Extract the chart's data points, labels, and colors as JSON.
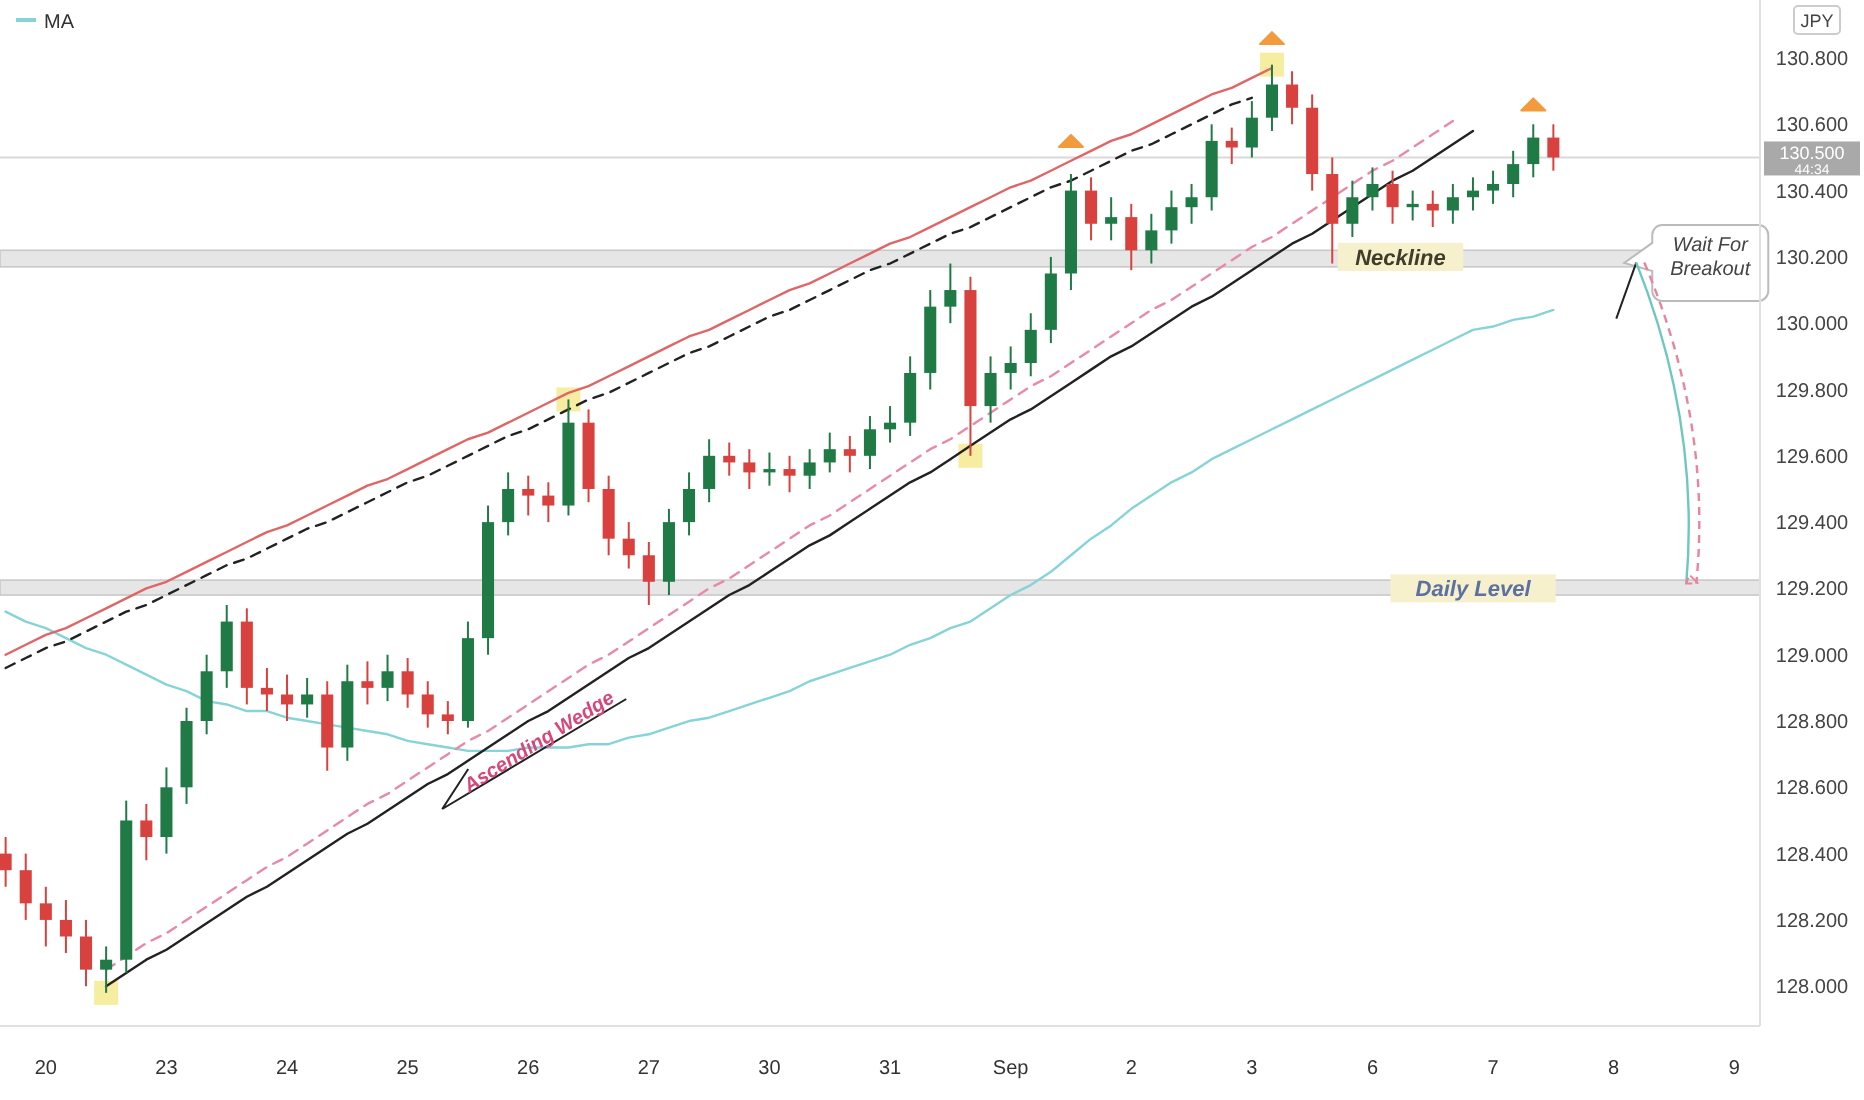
{
  "chart_data": {
    "type": "candlestick",
    "ylabel": "JPY",
    "legend": "top left",
    "ylim": [
      127.88,
      130.975
    ],
    "yticks": [
      {
        "value": 128,
        "label": "128.000"
      },
      {
        "value": 128.2,
        "label": "128.200"
      },
      {
        "value": 128.4,
        "label": "128.400"
      },
      {
        "value": 128.6,
        "label": "128.600"
      },
      {
        "value": 128.8,
        "label": "128.800"
      },
      {
        "value": 129,
        "label": "129.000"
      },
      {
        "value": 129.2,
        "label": "129.200"
      },
      {
        "value": 129.4,
        "label": "129.400"
      },
      {
        "value": 129.6,
        "label": "129.600"
      },
      {
        "value": 129.8,
        "label": "129.800"
      },
      {
        "value": 130,
        "label": "130.000"
      },
      {
        "value": 130.2,
        "label": "130.200"
      },
      {
        "value": 130.4,
        "label": "130.400"
      },
      {
        "value": 130.6,
        "label": "130.600"
      },
      {
        "value": 130.8,
        "label": "130.800"
      }
    ],
    "categories": [
      null,
      null,
      "20",
      null,
      null,
      null,
      null,
      null,
      "23",
      null,
      null,
      null,
      null,
      null,
      "24",
      null,
      null,
      null,
      null,
      null,
      "25",
      null,
      null,
      null,
      null,
      null,
      "26",
      null,
      null,
      null,
      null,
      null,
      "27",
      null,
      null,
      null,
      null,
      null,
      "30",
      null,
      null,
      null,
      null,
      null,
      "31",
      null,
      null,
      null,
      null,
      null,
      "Sep",
      null,
      null,
      null,
      null,
      null,
      "2",
      null,
      null,
      null,
      null,
      null,
      "3",
      null,
      null,
      null,
      null,
      null,
      "6",
      null,
      null,
      null,
      null,
      null,
      "7",
      null,
      null,
      null,
      null,
      null,
      "8",
      null,
      null,
      null,
      null,
      null,
      "9",
      null
    ],
    "ohlc": [
      [
        128.4,
        128.45,
        128.3,
        128.35
      ],
      [
        128.35,
        128.4,
        128.2,
        128.25
      ],
      [
        128.25,
        128.3,
        128.12,
        128.2
      ],
      [
        128.2,
        128.26,
        128.1,
        128.15
      ],
      [
        128.15,
        128.2,
        128.0,
        128.05
      ],
      [
        128.05,
        128.12,
        127.98,
        128.08
      ],
      [
        128.08,
        128.56,
        128.04,
        128.5
      ],
      [
        128.5,
        128.55,
        128.38,
        128.45
      ],
      [
        128.45,
        128.66,
        128.4,
        128.6
      ],
      [
        128.6,
        128.84,
        128.55,
        128.8
      ],
      [
        128.8,
        129.0,
        128.76,
        128.95
      ],
      [
        128.95,
        129.15,
        128.9,
        129.1
      ],
      [
        129.1,
        129.14,
        128.85,
        128.9
      ],
      [
        128.9,
        128.96,
        128.83,
        128.88
      ],
      [
        128.88,
        128.94,
        128.8,
        128.85
      ],
      [
        128.85,
        128.93,
        128.81,
        128.88
      ],
      [
        128.88,
        128.92,
        128.65,
        128.72
      ],
      [
        128.72,
        128.97,
        128.68,
        128.92
      ],
      [
        128.92,
        128.98,
        128.85,
        128.9
      ],
      [
        128.9,
        129.0,
        128.86,
        128.95
      ],
      [
        128.95,
        128.99,
        128.84,
        128.88
      ],
      [
        128.88,
        128.92,
        128.78,
        128.82
      ],
      [
        128.82,
        128.86,
        128.76,
        128.8
      ],
      [
        128.8,
        129.1,
        128.78,
        129.05
      ],
      [
        129.05,
        129.45,
        129.0,
        129.4
      ],
      [
        129.4,
        129.55,
        129.36,
        129.5
      ],
      [
        129.5,
        129.54,
        129.42,
        129.48
      ],
      [
        129.48,
        129.52,
        129.4,
        129.45
      ],
      [
        129.45,
        129.77,
        129.42,
        129.7
      ],
      [
        129.7,
        129.74,
        129.46,
        129.5
      ],
      [
        129.5,
        129.54,
        129.3,
        129.35
      ],
      [
        129.35,
        129.4,
        129.26,
        129.3
      ],
      [
        129.3,
        129.34,
        129.15,
        129.22
      ],
      [
        129.22,
        129.44,
        129.18,
        129.4
      ],
      [
        129.4,
        129.55,
        129.36,
        129.5
      ],
      [
        129.5,
        129.65,
        129.46,
        129.6
      ],
      [
        129.6,
        129.64,
        129.54,
        129.58
      ],
      [
        129.58,
        129.62,
        129.5,
        129.55
      ],
      [
        129.55,
        129.61,
        129.51,
        129.56
      ],
      [
        129.56,
        129.6,
        129.49,
        129.54
      ],
      [
        129.54,
        129.62,
        129.5,
        129.58
      ],
      [
        129.58,
        129.67,
        129.55,
        129.62
      ],
      [
        129.62,
        129.66,
        129.55,
        129.6
      ],
      [
        129.6,
        129.72,
        129.56,
        129.68
      ],
      [
        129.68,
        129.75,
        129.64,
        129.7
      ],
      [
        129.7,
        129.9,
        129.66,
        129.85
      ],
      [
        129.85,
        130.1,
        129.8,
        130.05
      ],
      [
        130.05,
        130.18,
        130.0,
        130.1
      ],
      [
        130.1,
        130.14,
        129.6,
        129.75
      ],
      [
        129.75,
        129.9,
        129.7,
        129.85
      ],
      [
        129.85,
        129.93,
        129.8,
        129.88
      ],
      [
        129.88,
        130.03,
        129.84,
        129.98
      ],
      [
        129.98,
        130.2,
        129.94,
        130.15
      ],
      [
        130.15,
        130.45,
        130.1,
        130.4
      ],
      [
        130.4,
        130.44,
        130.25,
        130.3
      ],
      [
        130.3,
        130.38,
        130.25,
        130.32
      ],
      [
        130.32,
        130.36,
        130.16,
        130.22
      ],
      [
        130.22,
        130.33,
        130.18,
        130.28
      ],
      [
        130.28,
        130.4,
        130.24,
        130.35
      ],
      [
        130.35,
        130.42,
        130.3,
        130.38
      ],
      [
        130.38,
        130.6,
        130.34,
        130.55
      ],
      [
        130.55,
        130.59,
        130.48,
        130.53
      ],
      [
        130.53,
        130.67,
        130.5,
        130.62
      ],
      [
        130.62,
        130.78,
        130.58,
        130.72
      ],
      [
        130.72,
        130.76,
        130.6,
        130.65
      ],
      [
        130.65,
        130.69,
        130.4,
        130.45
      ],
      [
        130.45,
        130.5,
        130.18,
        130.3
      ],
      [
        130.3,
        130.43,
        130.26,
        130.38
      ],
      [
        130.38,
        130.47,
        130.34,
        130.42
      ],
      [
        130.42,
        130.46,
        130.3,
        130.35
      ],
      [
        130.35,
        130.4,
        130.31,
        130.36
      ],
      [
        130.36,
        130.4,
        130.29,
        130.34
      ],
      [
        130.34,
        130.42,
        130.3,
        130.38
      ],
      [
        130.38,
        130.44,
        130.34,
        130.4
      ],
      [
        130.4,
        130.46,
        130.36,
        130.42
      ],
      [
        130.42,
        130.52,
        130.38,
        130.48
      ],
      [
        130.48,
        130.6,
        130.44,
        130.56
      ],
      [
        130.56,
        130.6,
        130.46,
        130.5
      ],
      null,
      null,
      null,
      null,
      null,
      null,
      null,
      null,
      null,
      null
    ],
    "colors": [
      "#d8413e",
      "#d8413e",
      "#d8413e",
      "#d8413e",
      "#d8413e",
      "#1f7a46",
      "#1f7a46",
      "#d8413e",
      "#1f7a46",
      "#1f7a46",
      "#1f7a46",
      "#1f7a46",
      "#d8413e",
      "#d8413e",
      "#d8413e",
      "#1f7a46",
      "#d8413e",
      "#1f7a46",
      "#d8413e",
      "#1f7a46",
      "#d8413e",
      "#d8413e",
      "#d8413e",
      "#1f7a46",
      "#1f7a46",
      "#1f7a46",
      "#d8413e",
      "#d8413e",
      "#1f7a46",
      "#d8413e",
      "#d8413e",
      "#d8413e",
      "#d8413e",
      "#1f7a46",
      "#1f7a46",
      "#1f7a46",
      "#d8413e",
      "#d8413e",
      "#1f7a46",
      "#d8413e",
      "#1f7a46",
      "#1f7a46",
      "#d8413e",
      "#1f7a46",
      "#1f7a46",
      "#1f7a46",
      "#1f7a46",
      "#1f7a46",
      "#d8413e",
      "#1f7a46",
      "#1f7a46",
      "#1f7a46",
      "#1f7a46",
      "#1f7a46",
      "#d8413e",
      "#1f7a46",
      "#d8413e",
      "#1f7a46",
      "#1f7a46",
      "#1f7a46",
      "#1f7a46",
      "#d8413e",
      "#1f7a46",
      "#1f7a46",
      "#d8413e",
      "#d8413e",
      "#d8413e",
      "#1f7a46",
      "#1f7a46",
      "#d8413e",
      "#1f7a46",
      "#d8413e",
      "#1f7a46",
      "#1f7a46",
      "#1f7a46",
      "#1f7a46",
      "#1f7a46",
      "#d8413e",
      null,
      null,
      null,
      null,
      null,
      null,
      null,
      null,
      null,
      null
    ],
    "series": [
      {
        "name": "MA",
        "type": "line",
        "color": "#86d4d8",
        "values": [
          129.13,
          129.1,
          129.08,
          129.05,
          129.02,
          129.0,
          128.97,
          128.94,
          128.91,
          128.89,
          128.86,
          128.85,
          128.83,
          128.83,
          128.81,
          128.8,
          128.79,
          128.78,
          128.77,
          128.76,
          128.74,
          128.73,
          128.72,
          128.71,
          128.71,
          128.71,
          128.72,
          128.72,
          128.72,
          128.73,
          128.73,
          128.75,
          128.76,
          128.78,
          128.8,
          128.81,
          128.83,
          128.85,
          128.87,
          128.89,
          128.92,
          128.94,
          128.96,
          128.98,
          129.0,
          129.03,
          129.05,
          129.08,
          129.1,
          129.14,
          129.18,
          129.21,
          129.25,
          129.3,
          129.35,
          129.39,
          129.44,
          129.48,
          129.52,
          129.55,
          129.59,
          129.62,
          129.65,
          129.68,
          129.71,
          129.74,
          129.77,
          129.8,
          129.83,
          129.86,
          129.89,
          129.92,
          129.95,
          129.98,
          129.99,
          130.01,
          130.02,
          130.04,
          null,
          null,
          null,
          null,
          null,
          null,
          null,
          null,
          null,
          null
        ]
      },
      {
        "type": "line",
        "color": "#e06666",
        "values": [
          129.0,
          129.03,
          129.06,
          129.08,
          129.11,
          129.14,
          129.17,
          129.2,
          129.22,
          129.25,
          129.28,
          129.31,
          129.34,
          129.37,
          129.39,
          129.42,
          129.45,
          129.48,
          129.51,
          129.53,
          129.56,
          129.59,
          129.62,
          129.65,
          129.67,
          129.7,
          129.73,
          129.76,
          129.79,
          129.81,
          129.84,
          129.87,
          129.9,
          129.93,
          129.96,
          129.98,
          130.01,
          130.04,
          130.07,
          130.1,
          130.12,
          130.15,
          130.18,
          130.21,
          130.24,
          130.26,
          130.29,
          130.32,
          130.35,
          130.38,
          130.41,
          130.43,
          130.46,
          130.49,
          130.52,
          130.55,
          130.57,
          130.6,
          130.63,
          130.66,
          130.69,
          130.71,
          130.74,
          130.77,
          null,
          null,
          null,
          null,
          null,
          null,
          null,
          null,
          null,
          null,
          null,
          null,
          null,
          null,
          null,
          null,
          null,
          null,
          null,
          null,
          null,
          null,
          null,
          null
        ]
      },
      {
        "type": "line",
        "color": "#222222",
        "line_style": "dashed",
        "values": [
          128.96,
          128.99,
          129.02,
          129.04,
          129.07,
          129.1,
          129.13,
          129.15,
          129.18,
          129.21,
          129.24,
          129.27,
          129.29,
          129.32,
          129.35,
          129.38,
          129.4,
          129.43,
          129.46,
          129.49,
          129.52,
          129.54,
          129.57,
          129.6,
          129.63,
          129.66,
          129.68,
          129.71,
          129.74,
          129.77,
          129.79,
          129.82,
          129.85,
          129.88,
          129.91,
          129.93,
          129.96,
          129.99,
          130.02,
          130.04,
          130.07,
          130.1,
          130.13,
          130.16,
          130.18,
          130.21,
          130.24,
          130.27,
          130.29,
          130.32,
          130.35,
          130.38,
          130.41,
          130.43,
          130.46,
          130.49,
          130.52,
          130.54,
          130.57,
          130.6,
          130.63,
          130.66,
          130.68,
          null,
          null,
          null,
          null,
          null,
          null,
          null,
          null,
          null,
          null,
          null,
          null,
          null,
          null,
          null,
          null,
          null,
          null,
          null,
          null,
          null,
          null,
          null,
          null,
          null
        ]
      },
      {
        "type": "line",
        "color": "#222222",
        "values": [
          null,
          null,
          null,
          null,
          null,
          128.0,
          128.04,
          128.08,
          128.11,
          128.15,
          128.19,
          128.23,
          128.27,
          128.3,
          128.34,
          128.38,
          128.42,
          128.46,
          128.49,
          128.53,
          128.57,
          128.61,
          128.64,
          128.68,
          128.72,
          128.76,
          128.8,
          128.83,
          128.87,
          128.91,
          128.95,
          128.99,
          129.02,
          129.06,
          129.1,
          129.14,
          129.18,
          129.21,
          129.25,
          129.29,
          129.33,
          129.36,
          129.4,
          129.44,
          129.48,
          129.52,
          129.55,
          129.59,
          129.63,
          129.67,
          129.71,
          129.74,
          129.78,
          129.82,
          129.86,
          129.9,
          129.93,
          129.97,
          130.01,
          130.05,
          130.08,
          130.12,
          130.16,
          130.2,
          130.24,
          130.27,
          130.31,
          130.35,
          130.39,
          130.43,
          130.46,
          130.5,
          130.54,
          130.58,
          null,
          null,
          null,
          null,
          null,
          null,
          null,
          null,
          null,
          null,
          null,
          null,
          null,
          null
        ]
      },
      {
        "type": "line",
        "color": "#e88aa5",
        "line_style": "dashed",
        "values": [
          null,
          null,
          null,
          null,
          null,
          128.05,
          128.09,
          128.13,
          128.16,
          128.2,
          128.24,
          128.28,
          128.32,
          128.36,
          128.39,
          128.43,
          128.47,
          128.51,
          128.55,
          128.58,
          128.62,
          128.66,
          128.7,
          128.74,
          128.77,
          128.81,
          128.85,
          128.89,
          128.93,
          128.97,
          129.0,
          129.04,
          129.08,
          129.12,
          129.16,
          129.2,
          129.23,
          129.27,
          129.31,
          129.35,
          129.39,
          129.42,
          129.46,
          129.5,
          129.54,
          129.58,
          129.62,
          129.65,
          129.69,
          129.73,
          129.77,
          129.81,
          129.84,
          129.88,
          129.92,
          129.96,
          130.0,
          130.04,
          130.07,
          130.11,
          130.15,
          130.19,
          130.23,
          130.26,
          130.3,
          130.34,
          130.38,
          130.42,
          130.46,
          130.49,
          130.53,
          130.57,
          130.61,
          null,
          null,
          null,
          null,
          null,
          null,
          null,
          null,
          null,
          null,
          null,
          null,
          null,
          null,
          null
        ]
      },
      {
        "type": "scatter",
        "marker": "square",
        "color": "#f6eda0",
        "values": [
          null,
          null,
          null,
          null,
          null,
          127.98,
          null,
          null,
          null,
          null,
          null,
          null,
          null,
          null,
          null,
          null,
          null,
          null,
          null,
          null,
          null,
          null,
          null,
          null,
          null,
          null,
          null,
          null,
          129.77,
          null,
          null,
          null,
          null,
          null,
          null,
          null,
          null,
          null,
          null,
          null,
          null,
          null,
          null,
          null,
          null,
          null,
          null,
          null,
          129.6,
          null,
          null,
          null,
          null,
          null,
          null,
          null,
          null,
          null,
          null,
          null,
          null,
          null,
          null,
          130.78,
          null,
          null,
          null,
          null,
          null,
          null,
          null,
          null,
          null,
          null,
          null,
          null,
          null,
          null,
          null,
          null,
          null,
          null,
          null,
          null,
          null,
          null,
          null,
          null
        ]
      },
      {
        "type": "scatter",
        "marker": "triangle",
        "color": "#f39a3c",
        "values": [
          null,
          null,
          null,
          null,
          null,
          null,
          null,
          null,
          null,
          null,
          null,
          null,
          null,
          null,
          null,
          null,
          null,
          null,
          null,
          null,
          null,
          null,
          null,
          null,
          null,
          null,
          null,
          null,
          null,
          null,
          null,
          null,
          null,
          null,
          null,
          null,
          null,
          null,
          null,
          null,
          null,
          null,
          null,
          null,
          null,
          null,
          null,
          null,
          null,
          null,
          null,
          null,
          null,
          130.55,
          null,
          null,
          null,
          null,
          null,
          null,
          null,
          null,
          null,
          130.86,
          null,
          null,
          null,
          null,
          null,
          null,
          null,
          null,
          null,
          null,
          null,
          null,
          130.66,
          null,
          null,
          null,
          null,
          null,
          null,
          null,
          null,
          null,
          null,
          null
        ]
      }
    ],
    "bands": [
      {
        "axis": "y",
        "from": 130.17,
        "to": 130.22,
        "color": "#e6e6e6"
      },
      {
        "axis": "y",
        "from": 129.18,
        "to": 129.225,
        "color": "#e6e6e6"
      }
    ],
    "ref_lines": [
      {
        "axis": "y",
        "value": 130.5,
        "label": "130.500",
        "color": "#d9d9d9"
      }
    ],
    "annotations": [
      {
        "text": "Neckline",
        "x": "6",
        "y": 130.2
      },
      {
        "text": "Daily Level",
        "x": "7",
        "y": 129.2
      },
      {
        "text": "Wait For Breakout",
        "x": "9",
        "y": 130.2
      },
      "Ascending Wedge",
      "44:34"
    ]
  }
}
